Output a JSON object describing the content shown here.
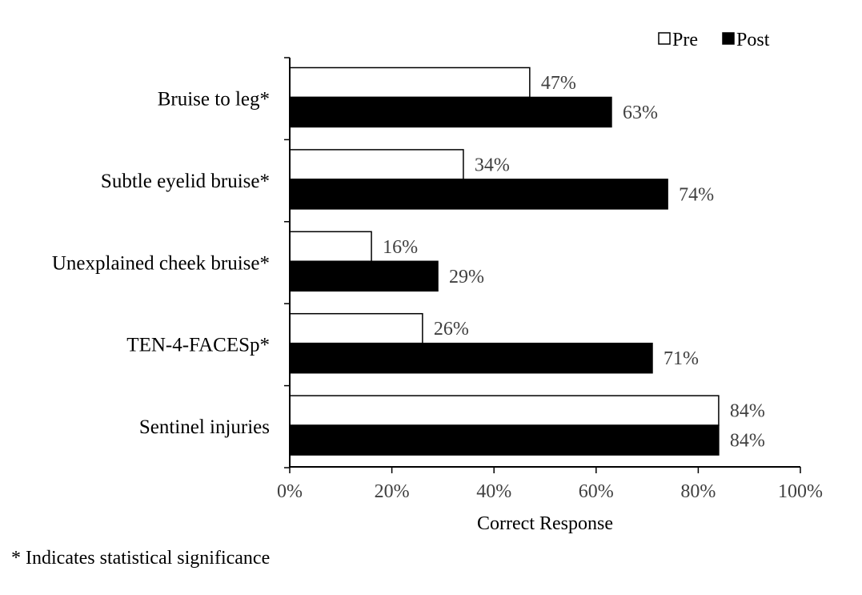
{
  "chart_data": {
    "type": "bar",
    "orientation": "horizontal",
    "categories": [
      "Bruise to leg*",
      "Subtle eyelid bruise*",
      "Unexplained cheek bruise*",
      "TEN-4-FACESp*",
      "Sentinel injuries"
    ],
    "series": [
      {
        "name": "Pre",
        "values": [
          47,
          34,
          16,
          26,
          84
        ],
        "labels": [
          "47%",
          "34%",
          "16%",
          "26%",
          "84%"
        ],
        "color": "#ffffff"
      },
      {
        "name": "Post",
        "values": [
          63,
          74,
          29,
          71,
          84
        ],
        "labels": [
          "63%",
          "74%",
          "29%",
          "71%",
          "84%"
        ],
        "color": "#000000"
      }
    ],
    "xlabel": "Correct Response",
    "ylabel": "",
    "xlim": [
      0,
      100
    ],
    "xticks": [
      "0%",
      "20%",
      "40%",
      "60%",
      "80%",
      "100%"
    ],
    "legend_position": "top-right",
    "grid": false
  },
  "footnote": "* Indicates statistical significance"
}
